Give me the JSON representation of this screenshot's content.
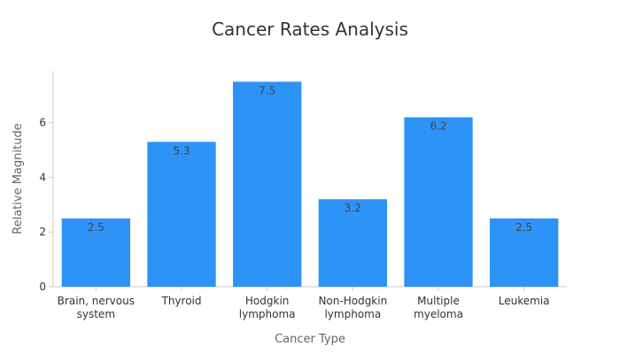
{
  "chart_data": {
    "type": "bar",
    "title": "Cancer Rates Analysis",
    "xlabel": "Cancer Type",
    "ylabel": "Relative Magnitude",
    "categories": [
      [
        "Brain, nervous",
        "system"
      ],
      [
        "Thyroid"
      ],
      [
        "Hodgkin",
        "lymphoma"
      ],
      [
        "Non-Hodgkin",
        "lymphoma"
      ],
      [
        "Multiple",
        "myeloma"
      ],
      [
        "Leukemia"
      ]
    ],
    "values": [
      2.5,
      5.3,
      7.5,
      3.2,
      6.2,
      2.5
    ],
    "value_labels": [
      "2.5",
      "5.3",
      "7.5",
      "3.2",
      "6.2",
      "2.5"
    ],
    "ylim": [
      0,
      7.9
    ],
    "yticks": [
      0,
      2,
      4,
      6
    ],
    "ytick_labels": [
      "0",
      "2",
      "4",
      "6"
    ],
    "grid": false,
    "bar_color": "#2e93f7"
  }
}
